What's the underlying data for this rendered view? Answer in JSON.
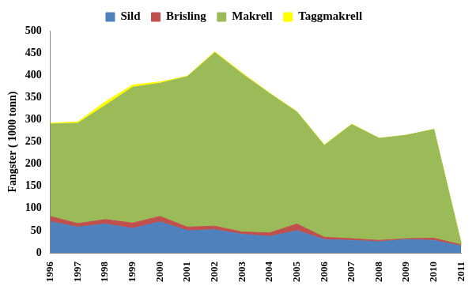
{
  "chart_data": {
    "type": "area",
    "stacked": true,
    "grid": false,
    "legend": "top",
    "y_label": "Fangster ( 1000 tonn)",
    "categories": [
      "1996",
      "1997",
      "1998",
      "1999",
      "2000",
      "2001",
      "2002",
      "2003",
      "2004",
      "2005",
      "2006",
      "2007",
      "2008",
      "2009",
      "2010",
      "2011"
    ],
    "series": [
      {
        "name": "Sild",
        "color": "#4f81bd",
        "values": [
          70,
          58,
          65,
          55,
          70,
          50,
          52,
          42,
          37,
          50,
          30,
          28,
          25,
          30,
          28,
          15
        ]
      },
      {
        "name": "Brisling",
        "color": "#c0504d",
        "values": [
          12,
          8,
          10,
          12,
          12,
          8,
          8,
          5,
          8,
          15,
          5,
          4,
          3,
          2,
          5,
          3
        ]
      },
      {
        "name": "Makrell",
        "color": "#9bbb59",
        "values": [
          208,
          226,
          257,
          306,
          300,
          339,
          391,
          356,
          314,
          252,
          207,
          257,
          230,
          233,
          245,
          2
        ]
      },
      {
        "name": "Taggmakrell",
        "color": "#ffff00",
        "values": [
          2,
          3,
          8,
          5,
          3,
          1,
          2,
          2,
          1,
          1,
          1,
          1,
          0,
          0,
          0,
          0
        ]
      }
    ],
    "ylim": [
      0,
      500
    ],
    "yticks": [
      0,
      50,
      100,
      150,
      200,
      250,
      300,
      350,
      400,
      450,
      500
    ]
  }
}
